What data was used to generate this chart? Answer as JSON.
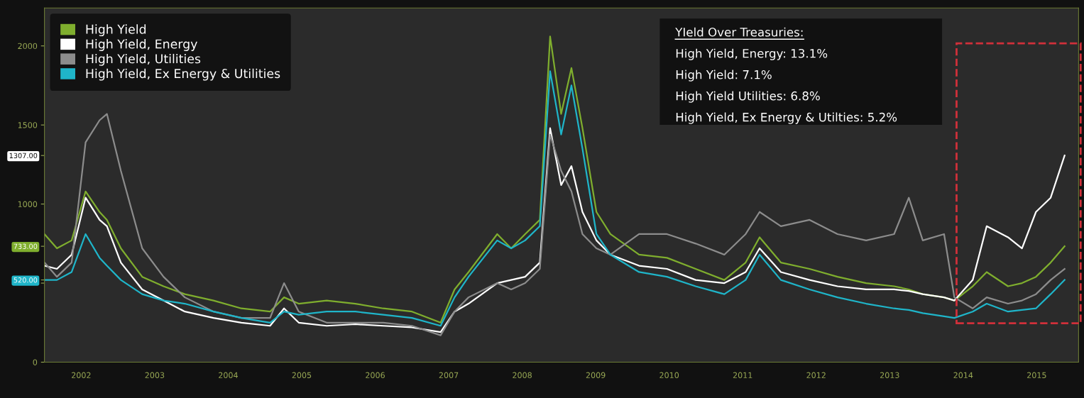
{
  "chart_data": {
    "type": "line",
    "x": [
      2002.0,
      2002.17,
      2002.37,
      2002.56,
      2002.75,
      2002.85,
      2003.04,
      2003.33,
      2003.62,
      2003.91,
      2004.3,
      2004.68,
      2005.07,
      2005.26,
      2005.46,
      2005.84,
      2006.23,
      2006.61,
      2007.0,
      2007.39,
      2007.58,
      2007.77,
      2008.16,
      2008.35,
      2008.54,
      2008.74,
      2008.88,
      2009.03,
      2009.17,
      2009.32,
      2009.51,
      2009.7,
      2010.09,
      2010.47,
      2010.86,
      2011.25,
      2011.54,
      2011.73,
      2012.02,
      2012.41,
      2012.79,
      2013.18,
      2013.56,
      2013.76,
      2013.95,
      2014.24,
      2014.38,
      2014.63,
      2014.82,
      2015.11,
      2015.3,
      2015.49,
      2015.69,
      2015.88
    ],
    "series": [
      {
        "name": "High Yield",
        "color": "#7fae2e",
        "values": [
          810,
          720,
          770,
          1080,
          950,
          900,
          720,
          540,
          480,
          430,
          390,
          340,
          320,
          410,
          370,
          390,
          370,
          340,
          320,
          250,
          460,
          570,
          810,
          720,
          810,
          900,
          2060,
          1570,
          1860,
          1480,
          950,
          810,
          680,
          660,
          590,
          520,
          630,
          790,
          630,
          590,
          540,
          500,
          480,
          460,
          430,
          410,
          390,
          480,
          570,
          480,
          500,
          540,
          630,
          733
        ]
      },
      {
        "name": "High Yield, Energy",
        "color": "#ffffff",
        "values": [
          610,
          590,
          680,
          1040,
          900,
          860,
          630,
          460,
          390,
          320,
          280,
          250,
          230,
          340,
          250,
          230,
          240,
          230,
          220,
          190,
          320,
          370,
          500,
          520,
          540,
          630,
          1480,
          1120,
          1240,
          950,
          770,
          680,
          610,
          590,
          520,
          500,
          570,
          720,
          570,
          520,
          480,
          460,
          460,
          450,
          430,
          410,
          390,
          520,
          860,
          790,
          720,
          950,
          1040,
          1307
        ]
      },
      {
        "name": "High Yield, Utilities",
        "color": "#8c8c8c",
        "values": [
          630,
          540,
          630,
          1390,
          1530,
          1570,
          1210,
          720,
          540,
          410,
          320,
          280,
          280,
          500,
          320,
          250,
          250,
          250,
          230,
          170,
          320,
          410,
          500,
          460,
          500,
          590,
          1440,
          1210,
          1080,
          810,
          720,
          680,
          810,
          810,
          750,
          680,
          810,
          950,
          860,
          900,
          810,
          770,
          810,
          1040,
          770,
          810,
          410,
          340,
          410,
          370,
          390,
          430,
          520,
          590
        ]
      },
      {
        "name": "High Yield, Ex Energy & Utilities",
        "color": "#1fb5c9",
        "values": [
          520,
          520,
          570,
          810,
          660,
          610,
          520,
          430,
          390,
          370,
          320,
          280,
          250,
          320,
          300,
          320,
          320,
          300,
          280,
          230,
          410,
          540,
          770,
          720,
          770,
          860,
          1840,
          1440,
          1750,
          1350,
          810,
          680,
          570,
          540,
          480,
          430,
          520,
          680,
          520,
          460,
          410,
          370,
          340,
          330,
          310,
          290,
          280,
          320,
          370,
          320,
          330,
          340,
          430,
          520
        ]
      }
    ],
    "xlim": [
      2002,
      2016.07
    ],
    "xticks": [
      {
        "value": 2002.5,
        "label": "2002"
      },
      {
        "value": 2003.5,
        "label": "2003"
      },
      {
        "value": 2004.5,
        "label": "2004"
      },
      {
        "value": 2005.5,
        "label": "2005"
      },
      {
        "value": 2006.5,
        "label": "2006"
      },
      {
        "value": 2007.5,
        "label": "2007"
      },
      {
        "value": 2008.5,
        "label": "2008"
      },
      {
        "value": 2009.5,
        "label": "2009"
      },
      {
        "value": 2010.5,
        "label": "2010"
      },
      {
        "value": 2011.5,
        "label": "2011"
      },
      {
        "value": 2012.5,
        "label": "2012"
      },
      {
        "value": 2013.5,
        "label": "2013"
      },
      {
        "value": 2014.5,
        "label": "2014"
      },
      {
        "value": 2015.5,
        "label": "2015"
      }
    ],
    "ylim": [
      0,
      2240
    ],
    "yticks": [
      0,
      {
        "value": 500,
        "label": null
      },
      {
        "value": 520,
        "label": "520.00"
      },
      {
        "value": 733,
        "label": "733.00"
      },
      1000,
      {
        "value": 1307,
        "label": "1307.00"
      },
      1500,
      2000
    ],
    "grid": false,
    "legend": "top left",
    "marker": "none",
    "line_style": "solid",
    "annotations": [
      "YIeld Over Treasuries:",
      "High Yield, Energy: 13.1%",
      "High Yield: 7.1%",
      "High Yield Utilities: 6.8%",
      "High Yield, Ex Energy & Utilties: 5.2%"
    ]
  }
}
